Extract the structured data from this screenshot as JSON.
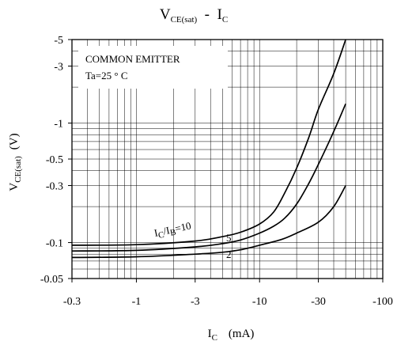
{
  "chart_data": {
    "type": "line",
    "title": {
      "main": "V",
      "main_sub": "CE(sat)",
      "sep": "  -  ",
      "tail": "I",
      "tail_sub": "C"
    },
    "xlabel": {
      "main": "I",
      "sub": "C",
      "unit": "(mA)"
    },
    "ylabel": {
      "main": "V",
      "sub": "CE(sat)",
      "unit": "(V)"
    },
    "x_scale": "log",
    "y_scale": "log",
    "xlim": [
      -0.3,
      -100
    ],
    "ylim": [
      -0.05,
      -5
    ],
    "x_ticks": [
      -0.3,
      -1,
      -3,
      -10,
      -30,
      -100
    ],
    "x_tick_labels": [
      "-0.3",
      "-1",
      "-3",
      "-10",
      "-30",
      "-100"
    ],
    "y_ticks": [
      -0.05,
      -0.1,
      -0.3,
      -0.5,
      -1,
      -3,
      -5
    ],
    "y_tick_labels": [
      "-0.05",
      "-0.1",
      "-0.3",
      "-0.5",
      "-1",
      "-3",
      "-5"
    ],
    "grid": true,
    "annotation": {
      "line1": "COMMON EMITTER",
      "line2": "Ta=25 ° C"
    },
    "curve_label_10": {
      "p1": "I",
      "s1": "C",
      "p2": "/I",
      "s2": "B",
      "p3": "=10"
    },
    "series": [
      {
        "label": "10",
        "x": [
          -0.3,
          -1,
          -3,
          -5,
          -7,
          -10,
          -13,
          -16,
          -20,
          -25,
          -30,
          -40,
          -50
        ],
        "y": [
          -0.095,
          -0.096,
          -0.103,
          -0.112,
          -0.122,
          -0.143,
          -0.18,
          -0.26,
          -0.42,
          -0.75,
          -1.3,
          -2.6,
          -5.0
        ]
      },
      {
        "label": "5",
        "x": [
          -0.3,
          -1,
          -3,
          -5,
          -7,
          -10,
          -13,
          -16,
          -20,
          -25,
          -30,
          -40,
          -50
        ],
        "y": [
          -0.085,
          -0.086,
          -0.092,
          -0.098,
          -0.105,
          -0.12,
          -0.137,
          -0.16,
          -0.21,
          -0.31,
          -0.45,
          -0.85,
          -1.45
        ]
      },
      {
        "label": "2",
        "x": [
          -0.3,
          -1,
          -3,
          -5,
          -7,
          -10,
          -15,
          -20,
          -30,
          -40,
          -50
        ],
        "y": [
          -0.075,
          -0.076,
          -0.08,
          -0.083,
          -0.087,
          -0.095,
          -0.106,
          -0.12,
          -0.148,
          -0.2,
          -0.3
        ]
      }
    ]
  }
}
